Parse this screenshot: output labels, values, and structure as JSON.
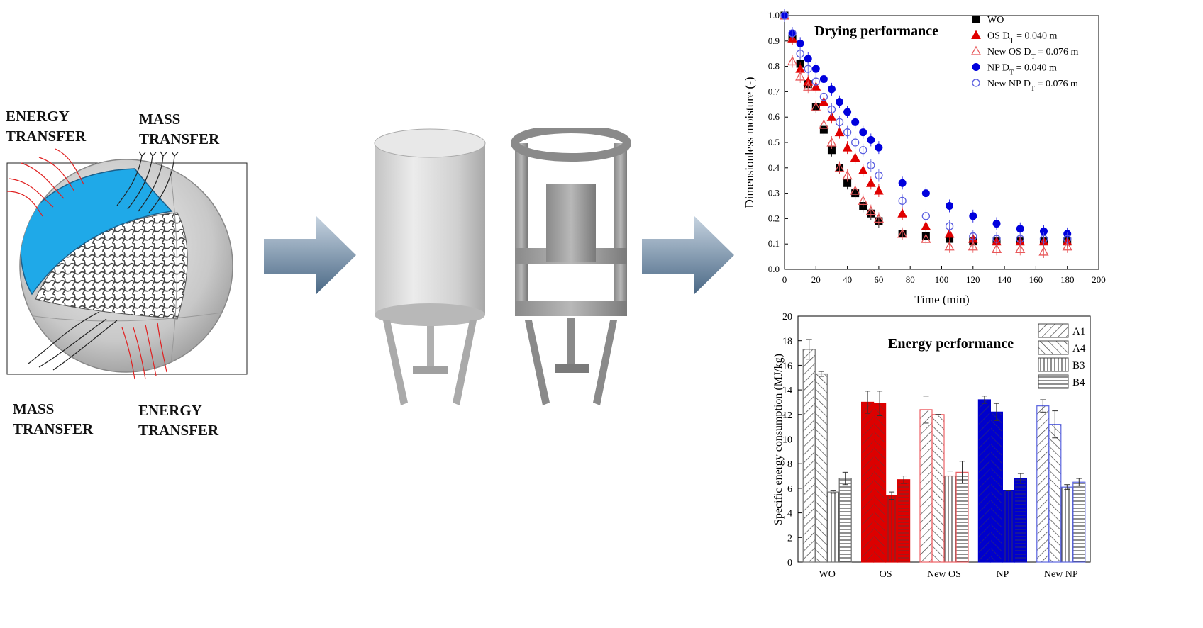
{
  "labels": {
    "energy_top": [
      "ENERGY",
      "TRANSFER"
    ],
    "mass_top": [
      "MASS",
      "TRANSFER"
    ],
    "mass_bottom": [
      "MASS",
      "TRANSFER"
    ],
    "energy_bottom": [
      "ENERGY",
      "TRANSFER"
    ]
  },
  "colors": {
    "water": "#1fa9e8",
    "arrow_dark": "#4a6885",
    "arrow_light": "#c6d3e0",
    "wo": "#000000",
    "os": "#e00000",
    "new_os": "#e8585a",
    "np": "#0000dd",
    "new_np": "#5a5ee0"
  },
  "chart_data": [
    {
      "type": "scatter",
      "title": "Drying performance",
      "xlabel": "Time (min)",
      "ylabel": "Dimensionless moisture (-)",
      "xlim": [
        0,
        200
      ],
      "ylim": [
        0,
        1.0
      ],
      "xticks": [
        0,
        20,
        40,
        60,
        80,
        100,
        120,
        140,
        160,
        180,
        200
      ],
      "yticks": [
        0.0,
        0.1,
        0.2,
        0.3,
        0.4,
        0.5,
        0.6,
        0.7,
        0.8,
        0.9,
        1.0
      ],
      "tick_labels_x": [
        "0",
        "20",
        "40",
        "60",
        "80",
        "100",
        "120",
        "140",
        "160",
        "180",
        "200"
      ],
      "tick_labels_y": [
        "0.0",
        "0.1",
        "0.2",
        "0.3",
        "0.4",
        "0.5",
        "0.6",
        "0.7",
        "0.8",
        "0.9",
        "1.0"
      ],
      "legend_position": "top-right",
      "series": [
        {
          "name": "WO",
          "marker": "square-filled",
          "color": "#000000",
          "x": [
            0,
            5,
            10,
            15,
            20,
            25,
            30,
            35,
            40,
            45,
            50,
            55,
            60,
            75,
            90,
            105,
            120,
            135,
            150,
            165,
            180
          ],
          "y": [
            1.0,
            0.91,
            0.81,
            0.73,
            0.64,
            0.55,
            0.47,
            0.4,
            0.34,
            0.3,
            0.25,
            0.22,
            0.19,
            0.14,
            0.13,
            0.12,
            0.11,
            0.11,
            0.11,
            0.11,
            0.11
          ]
        },
        {
          "name": "OS D_T = 0.040 m",
          "marker": "triangle-filled",
          "color": "#e00000",
          "x": [
            0,
            5,
            10,
            15,
            20,
            25,
            30,
            35,
            40,
            45,
            50,
            55,
            60,
            75,
            90,
            105,
            120,
            135,
            150,
            165,
            180
          ],
          "y": [
            1.0,
            0.91,
            0.79,
            0.74,
            0.72,
            0.66,
            0.6,
            0.54,
            0.48,
            0.44,
            0.39,
            0.34,
            0.31,
            0.22,
            0.17,
            0.14,
            0.12,
            0.11,
            0.11,
            0.11,
            0.11
          ]
        },
        {
          "name": "New OS D_T = 0.076 m",
          "marker": "triangle-open",
          "color": "#e8585a",
          "x": [
            0,
            5,
            10,
            15,
            20,
            25,
            30,
            35,
            40,
            45,
            50,
            55,
            60,
            75,
            90,
            105,
            120,
            135,
            150,
            165,
            180
          ],
          "y": [
            1.0,
            0.82,
            0.76,
            0.72,
            0.64,
            0.57,
            0.5,
            0.4,
            0.37,
            0.31,
            0.27,
            0.23,
            0.2,
            0.14,
            0.12,
            0.09,
            0.09,
            0.08,
            0.08,
            0.07,
            0.09
          ]
        },
        {
          "name": "NP D_T = 0.040 m",
          "marker": "circle-filled",
          "color": "#0000dd",
          "x": [
            0,
            5,
            10,
            15,
            20,
            25,
            30,
            35,
            40,
            45,
            50,
            55,
            60,
            75,
            90,
            105,
            120,
            135,
            150,
            165,
            180
          ],
          "y": [
            1.0,
            0.93,
            0.89,
            0.83,
            0.79,
            0.75,
            0.71,
            0.66,
            0.62,
            0.58,
            0.54,
            0.51,
            0.48,
            0.34,
            0.3,
            0.25,
            0.21,
            0.18,
            0.16,
            0.15,
            0.14
          ]
        },
        {
          "name": "New NP D_T = 0.076 m",
          "marker": "circle-open",
          "color": "#5a5ee0",
          "x": [
            0,
            5,
            10,
            15,
            20,
            25,
            30,
            35,
            40,
            45,
            50,
            55,
            60,
            75,
            90,
            105,
            120,
            135,
            150,
            165,
            180
          ],
          "y": [
            1.0,
            0.93,
            0.85,
            0.79,
            0.74,
            0.68,
            0.63,
            0.58,
            0.54,
            0.5,
            0.47,
            0.41,
            0.37,
            0.27,
            0.21,
            0.17,
            0.13,
            0.12,
            0.12,
            0.12,
            0.12
          ]
        }
      ]
    },
    {
      "type": "bar",
      "title": "Energy performance",
      "ylabel": "Specific energy consumption (MJ/kg)",
      "ylim": [
        0,
        20
      ],
      "yticks": [
        0,
        2,
        4,
        6,
        8,
        10,
        12,
        14,
        16,
        18,
        20
      ],
      "tick_labels_y": [
        "0",
        "2",
        "4",
        "6",
        "8",
        "10",
        "12",
        "14",
        "16",
        "18",
        "20"
      ],
      "categories": [
        "WO",
        "OS",
        "New OS",
        "NP",
        "New NP"
      ],
      "category_colors": [
        "#707070",
        "#dd0000",
        "#ee6266",
        "#0000cc",
        "#5a64e0"
      ],
      "category_filled": [
        false,
        true,
        false,
        true,
        false
      ],
      "legend_position": "top-right",
      "series": [
        {
          "name": "A1",
          "pattern": "diag-right",
          "values": [
            17.3,
            13.0,
            12.4,
            13.2,
            12.7
          ],
          "errors": [
            0.8,
            0.9,
            1.1,
            0.3,
            0.5
          ]
        },
        {
          "name": "A4",
          "pattern": "diag-left",
          "values": [
            15.3,
            12.9,
            12.0,
            12.2,
            11.2
          ],
          "errors": [
            0.2,
            1.0,
            0.0,
            0.7,
            1.1
          ]
        },
        {
          "name": "B3",
          "pattern": "vertical",
          "values": [
            5.7,
            5.4,
            7.0,
            5.8,
            6.1
          ],
          "errors": [
            0.1,
            0.3,
            0.4,
            0.0,
            0.2
          ]
        },
        {
          "name": "B4",
          "pattern": "horizontal",
          "values": [
            6.8,
            6.7,
            7.3,
            6.8,
            6.5
          ],
          "errors": [
            0.5,
            0.3,
            0.9,
            0.4,
            0.3
          ]
        }
      ]
    }
  ]
}
